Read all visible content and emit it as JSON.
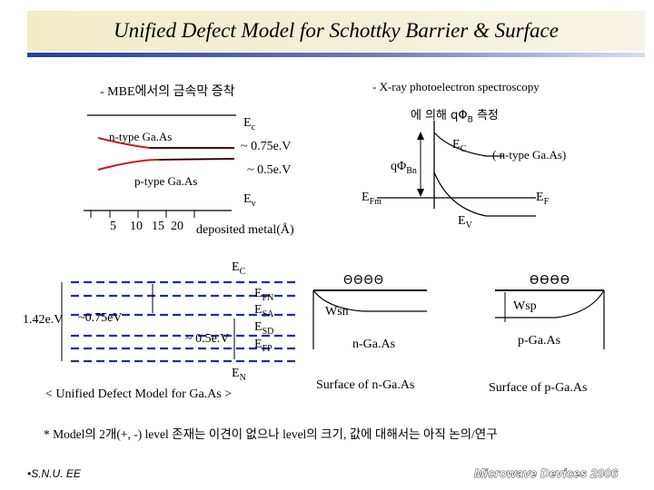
{
  "title": "Unified Defect Model for Schottky Barrier & Surface",
  "left_panel": {
    "heading": "- MBE에서의 금속막 증착",
    "ntype_label": "n-type Ga.As",
    "ptype_label": "p-type Ga.As",
    "ec_label": "E",
    "ec_sub": "c",
    "ev_label": "E",
    "ev_sub": "v",
    "n_energy": "~ 0.75e.V",
    "p_energy": "~ 0.5e.V",
    "axis_ticks": [
      "5",
      "10",
      "15",
      "20"
    ],
    "axis_label": "deposited metal(Å)"
  },
  "right_panel": {
    "heading1": "- X-ray photoelectron spectroscopy",
    "heading2_prefix": "에 의해 qΦ",
    "heading2_sub": "B",
    "heading2_suffix": " 측정",
    "ec_label": "E",
    "ec_sub": "C",
    "ntype_note": "( n-type Ga.As)",
    "barrier_label": "qΦ",
    "barrier_sub": "Bn",
    "efm_label": "E",
    "efm_sub": "Fm",
    "ef_label": "E",
    "ef_sub": "F",
    "ev_label": "E",
    "ev_sub": "V"
  },
  "model": {
    "ec_label": "E",
    "ec_sub": "C",
    "gap_label": "1.42e.V",
    "n_energy": "~0.75eV",
    "p_energy": "~ 0.5e.V",
    "efn": "E",
    "efn_sub": "FN",
    "esa": "E",
    "esa_sub": "SA",
    "esd": "E",
    "esd_sub": "SD",
    "efp": "E",
    "efp_sub": "FP",
    "en": "E",
    "en_sub": "N",
    "caption": "< Unified Defect Model for Ga.As >"
  },
  "surface_n": {
    "charges": "ΘΘΘΘ",
    "wsn": "Wsn",
    "label": "n-Ga.As",
    "caption": "Surface of n-Ga.As"
  },
  "surface_p": {
    "charges": "ƟƟƟƟ",
    "wsp": "Wsp",
    "label": "p-Ga.As",
    "caption": "Surface of p-Ga.As"
  },
  "note": "* Model의 2개(+, -) level 존재는 이견이 없으나  level의 크기, 값에 대해서는 아직 논의/연구",
  "footer_left": "•S.N.U. EE",
  "footer_right": "Microwave Devices 2006",
  "colors": {
    "blue_dash": "#1c2fa0",
    "red_curve": "#c02020",
    "rule_blue": "#2a3c9c"
  }
}
